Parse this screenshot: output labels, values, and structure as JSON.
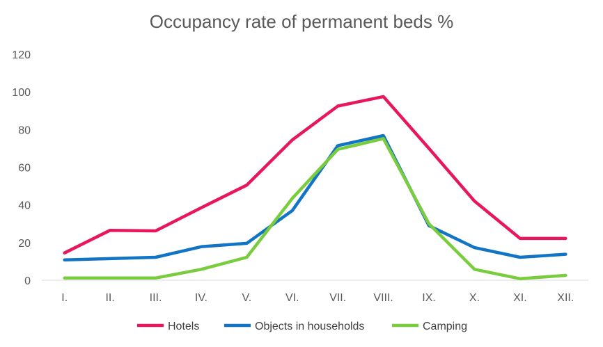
{
  "chart_data": {
    "type": "line",
    "title": "Occupancy rate of permanent beds %",
    "categories": [
      "I.",
      "II.",
      "III.",
      "IV.",
      "V.",
      "VI.",
      "VII.",
      "VIII.",
      "IX.",
      "X.",
      "XI.",
      "XII."
    ],
    "ylim": [
      0,
      120
    ],
    "yticks": [
      0,
      20,
      40,
      60,
      80,
      100,
      120
    ],
    "grid": false,
    "legend_position": "bottom",
    "series": [
      {
        "name": "Hotels",
        "color": "#E8175D",
        "values": [
          14.5,
          26.5,
          26.2,
          38.5,
          50.5,
          74.5,
          92.5,
          97.5,
          70.0,
          42.0,
          22.2,
          22.2
        ]
      },
      {
        "name": "Objects in households",
        "color": "#1174C4",
        "values": [
          10.8,
          11.5,
          12.2,
          17.8,
          19.6,
          37.0,
          71.5,
          76.8,
          29.0,
          17.3,
          12.2,
          13.8
        ]
      },
      {
        "name": "Camping",
        "color": "#7ACC3F",
        "values": [
          1.2,
          1.2,
          1.2,
          5.8,
          12.2,
          43.5,
          69.5,
          75.2,
          30.0,
          5.8,
          0.8,
          2.6
        ]
      }
    ]
  }
}
